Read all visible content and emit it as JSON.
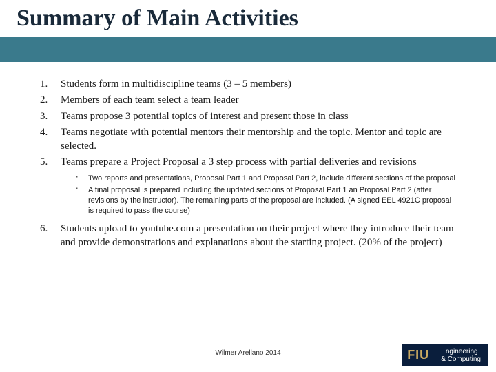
{
  "title": "Summary of Main Activities",
  "items": [
    {
      "text": "Students form in multidiscipline teams (3 – 5 members)"
    },
    {
      "text": "Members of each team select a team leader"
    },
    {
      "text": "Teams propose 3 potential topics of interest and present those in class"
    },
    {
      "text": "Teams negotiate with potential mentors their mentorship and the topic. Mentor and topic are selected."
    },
    {
      "text": "Teams prepare a Project Proposal a 3 step process with partial deliveries and revisions",
      "sub": [
        "Two reports and presentations, Proposal Part 1 and Proposal Part 2, include different sections of the proposal",
        "A final proposal is prepared including the updated sections of Proposal Part 1 an Proposal Part 2 (after revisions by the instructor). The remaining parts of the proposal are included. (A signed EEL 4921C proposal is required to pass the course)"
      ]
    },
    {
      "text": "Students upload to youtube.com a presentation on their project where they introduce their team and provide demonstrations and explanations about the starting project. (20% of the project)"
    }
  ],
  "footer": "Wilmer Arellano 2014",
  "logo": {
    "acronym": "FIU",
    "line1": "Engineering",
    "line2": "& Computing"
  },
  "colors": {
    "band": "#3a7a8c",
    "title": "#1a2a3a",
    "text": "#1a1a1a",
    "logo_bg": "#0a1e3c",
    "logo_gold": "#c9a961"
  }
}
